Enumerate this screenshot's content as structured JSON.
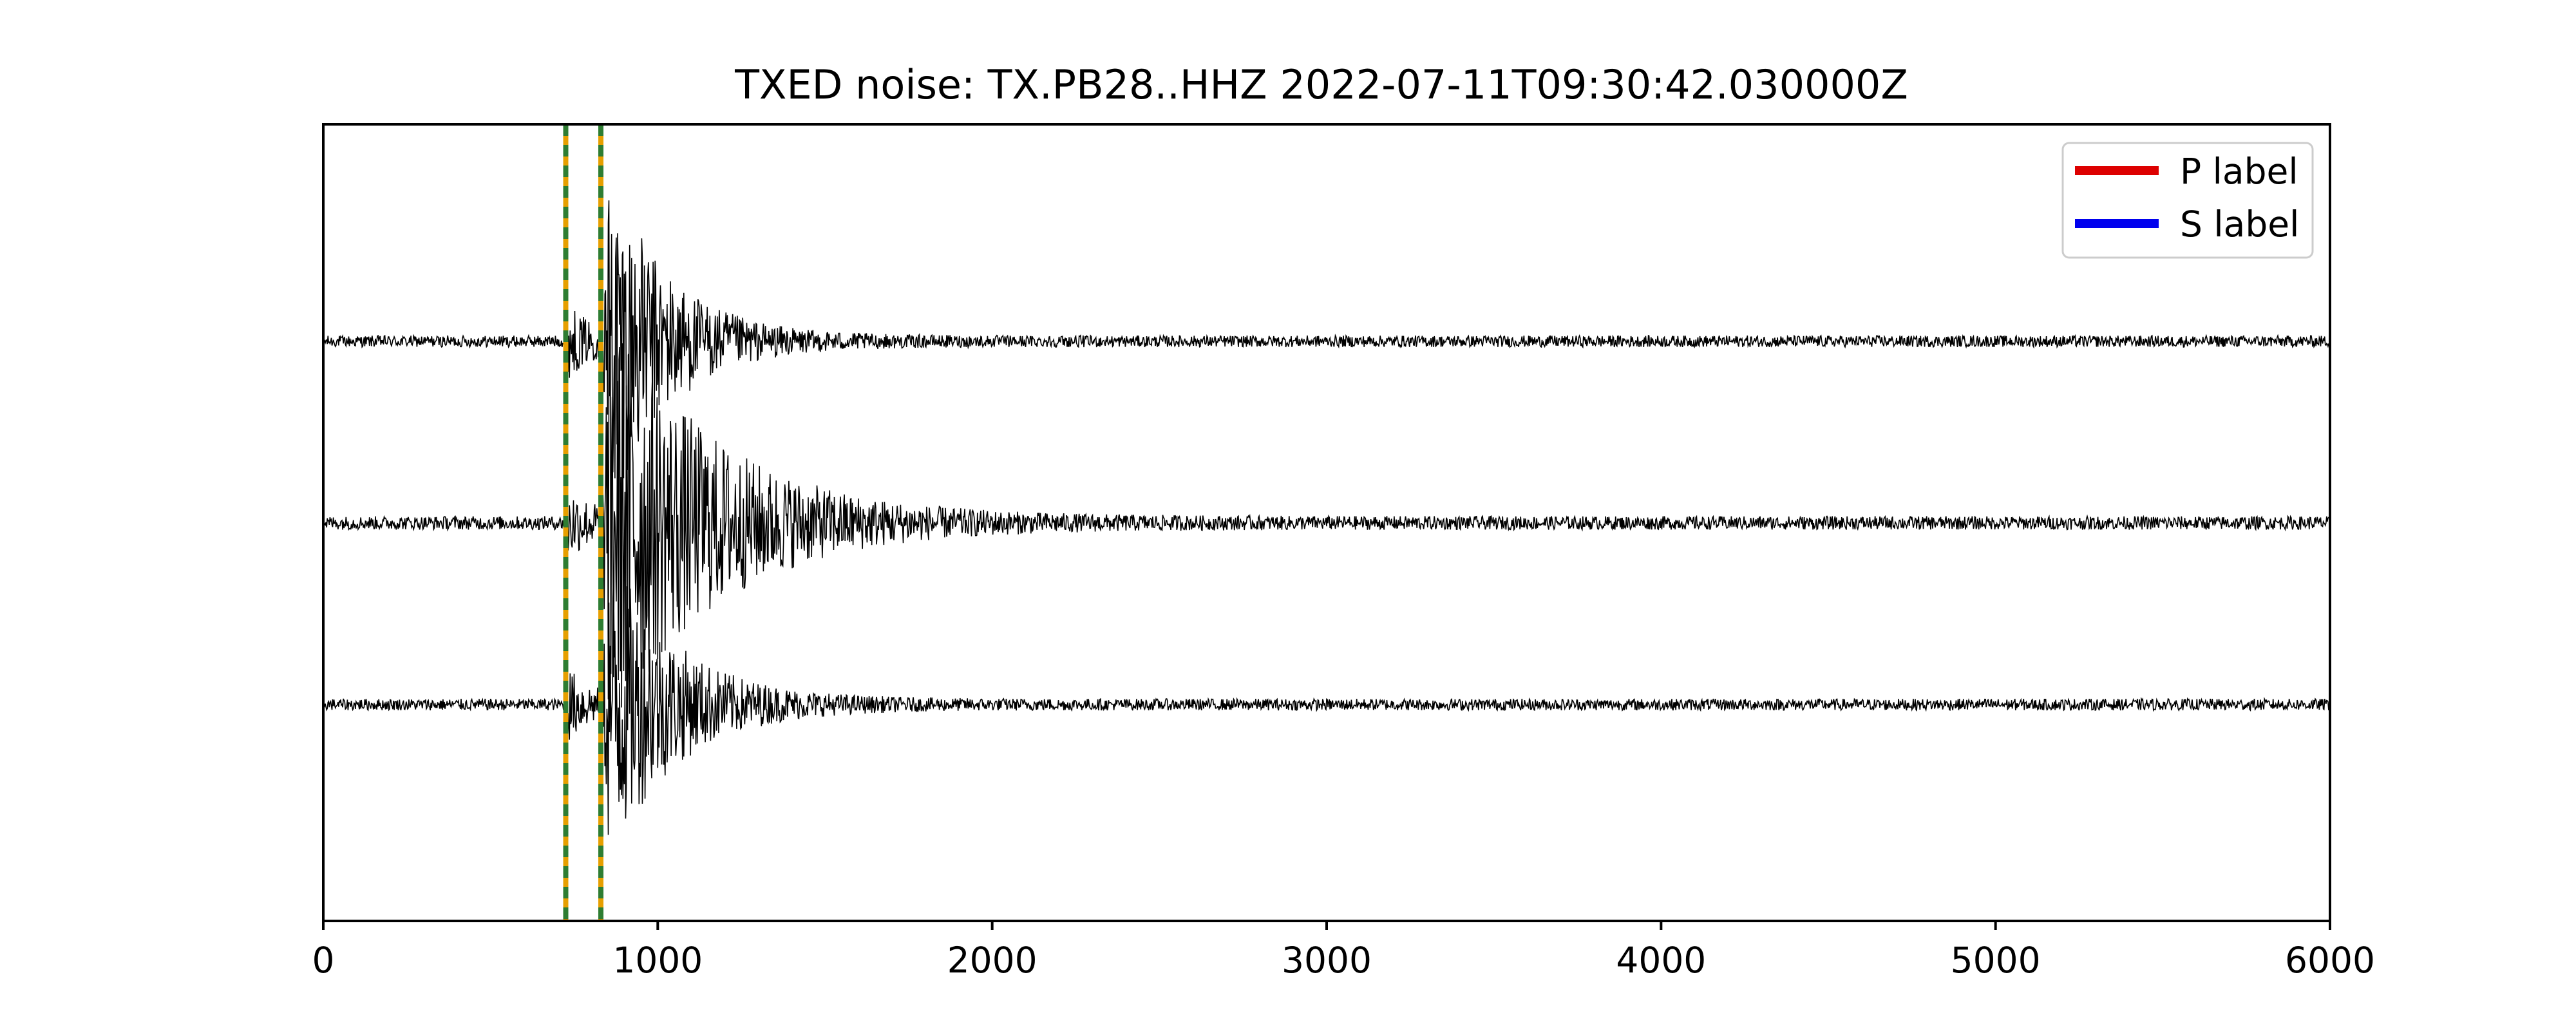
{
  "chart_data": {
    "type": "line",
    "title": "TXED noise: TX.PB28..HHZ 2022-07-11T09:30:42.030000Z",
    "xlabel": "",
    "ylabel": "",
    "xlim": [
      0,
      6000
    ],
    "xticks": [
      "0",
      "1000",
      "2000",
      "3000",
      "4000",
      "5000",
      "6000"
    ],
    "yticks": [],
    "grid": false,
    "legend_position": "top-right",
    "legend": [
      {
        "label": "P label",
        "color": "#dd0000"
      },
      {
        "label": "S label",
        "color": "#0000ee"
      }
    ],
    "pick_lines": {
      "x": [
        725,
        830
      ],
      "style": "dashed",
      "colors": [
        "#2e7d32",
        "#e69f00"
      ]
    },
    "series": [
      {
        "channel_index": 0,
        "color": "#000000",
        "p_arrival": 725,
        "s_arrival": 830,
        "noise_amplitude": 0.03,
        "peak_amplitude": 1.0,
        "coda_decay": 180
      },
      {
        "channel_index": 1,
        "color": "#000000",
        "p_arrival": 725,
        "s_arrival": 830,
        "noise_amplitude": 0.035,
        "peak_amplitude": 1.2,
        "coda_decay": 320
      },
      {
        "channel_index": 2,
        "color": "#000000",
        "p_arrival": 725,
        "s_arrival": 830,
        "noise_amplitude": 0.03,
        "peak_amplitude": 0.9,
        "coda_decay": 200
      }
    ]
  }
}
